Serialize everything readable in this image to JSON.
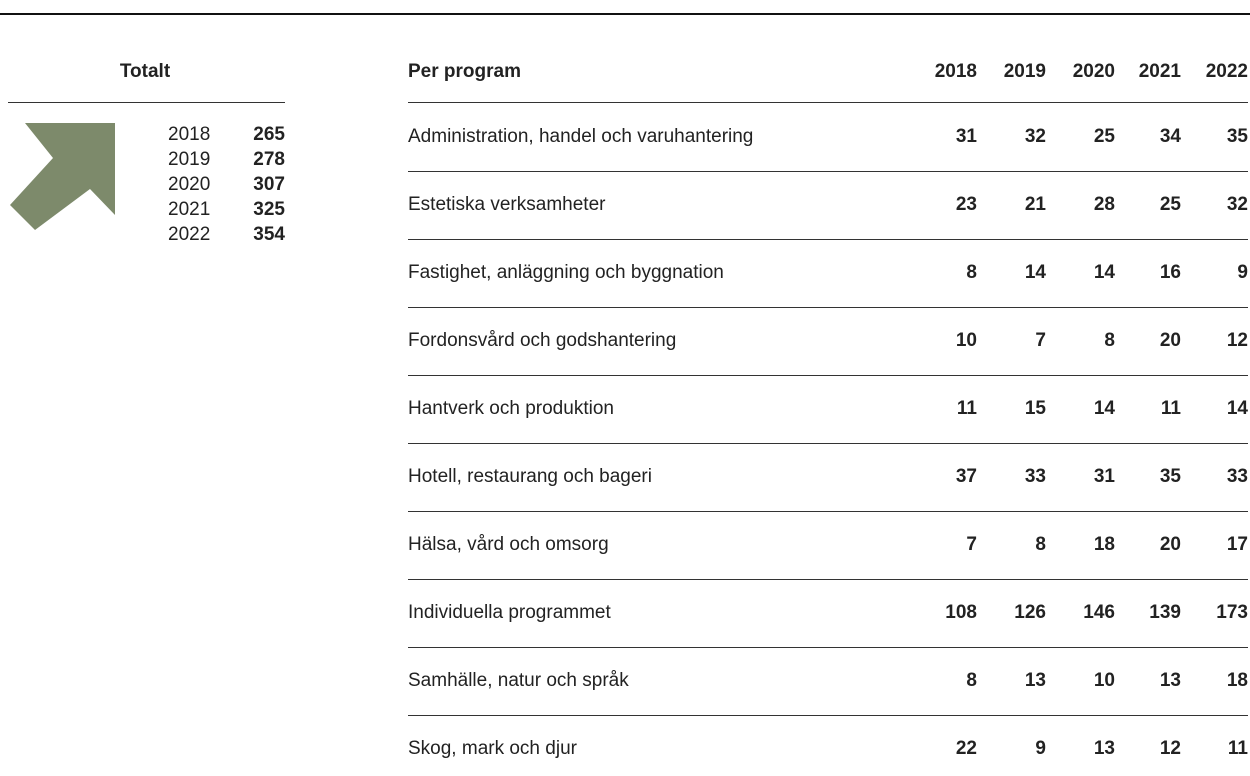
{
  "totals": {
    "title": "Totalt",
    "rows": [
      [
        "2018",
        "265"
      ],
      [
        "2019",
        "278"
      ],
      [
        "2020",
        "307"
      ],
      [
        "2021",
        "325"
      ],
      [
        "2022",
        "354"
      ]
    ]
  },
  "table": {
    "header": [
      "Per program",
      "2018",
      "2019",
      "2020",
      "2021",
      "2022"
    ],
    "rows": [
      [
        "Administration, handel och varuhantering",
        "31",
        "32",
        "25",
        "34",
        "35"
      ],
      [
        "Estetiska verksamheter",
        "23",
        "21",
        "28",
        "25",
        "32"
      ],
      [
        "Fastighet, anläggning och byggnation",
        "8",
        "14",
        "14",
        "16",
        "9"
      ],
      [
        "Fordonsvård och godshantering",
        "10",
        "7",
        "8",
        "20",
        "12"
      ],
      [
        "Hantverk och produktion",
        "11",
        "15",
        "14",
        "11",
        "14"
      ],
      [
        "Hotell, restaurang och bageri",
        "37",
        "33",
        "31",
        "35",
        "33"
      ],
      [
        "Hälsa, vård och omsorg",
        "7",
        "8",
        "18",
        "20",
        "17"
      ],
      [
        "Individuella programmet",
        "108",
        "126",
        "146",
        "139",
        "173"
      ],
      [
        "Samhälle, natur och språk",
        "8",
        "13",
        "10",
        "13",
        "18"
      ],
      [
        "Skog, mark och djur",
        "22",
        "9",
        "13",
        "12",
        "11"
      ]
    ]
  }
}
